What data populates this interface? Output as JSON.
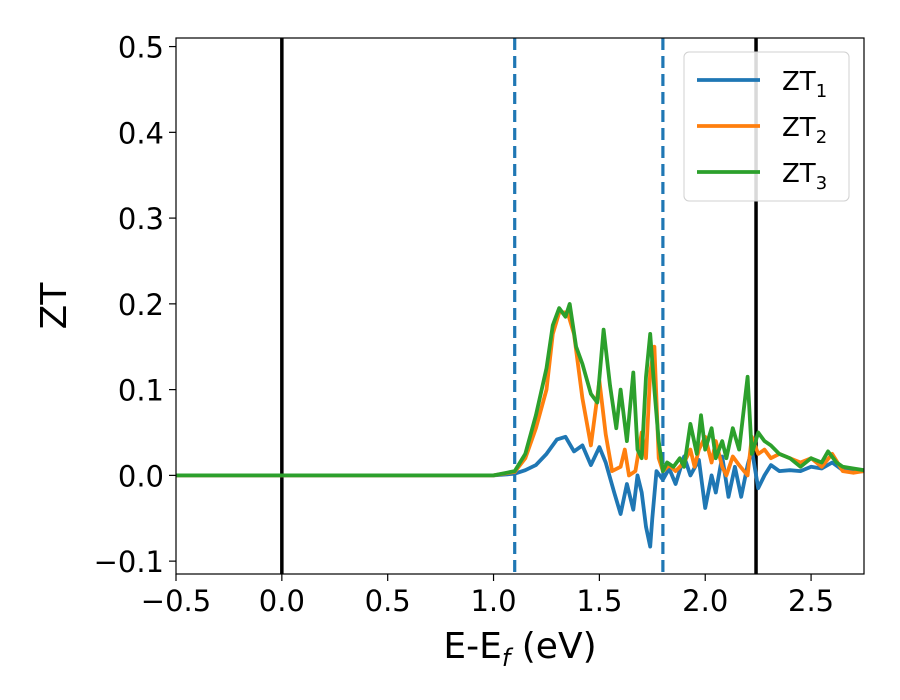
{
  "chart_data": {
    "type": "line",
    "xlabel": {
      "main": "E-E",
      "sub": "f",
      "unit": " (eV)"
    },
    "ylabel": "ZT",
    "xlim": [
      -0.5,
      2.75
    ],
    "ylim": [
      -0.115,
      0.51
    ],
    "xticks": [
      -0.5,
      0.0,
      0.5,
      1.0,
      1.5,
      2.0,
      2.5
    ],
    "xtick_labels": [
      "−0.5",
      "0.0",
      "0.5",
      "1.0",
      "1.5",
      "2.0",
      "2.5"
    ],
    "yticks": [
      -0.1,
      0.0,
      0.1,
      0.2,
      0.3,
      0.4,
      0.5
    ],
    "ytick_labels": [
      "−0.1",
      "0.0",
      "0.1",
      "0.2",
      "0.3",
      "0.4",
      "0.5"
    ],
    "grid": false,
    "legend_position": "top-right",
    "vertical_lines": [
      {
        "x": 0.0,
        "style": "solid",
        "color": "#000000"
      },
      {
        "x": 1.1,
        "style": "dashed",
        "color": "#1f77b4"
      },
      {
        "x": 1.8,
        "style": "dashed",
        "color": "#1f77b4"
      },
      {
        "x": 2.24,
        "style": "solid",
        "color": "#000000"
      }
    ],
    "series": [
      {
        "name": "ZT",
        "name_sub": "1",
        "color": "#1f77b4",
        "x": [
          -0.5,
          1.0,
          1.1,
          1.15,
          1.2,
          1.25,
          1.3,
          1.34,
          1.38,
          1.42,
          1.46,
          1.5,
          1.53,
          1.57,
          1.6,
          1.63,
          1.66,
          1.68,
          1.7,
          1.72,
          1.74,
          1.75,
          1.77,
          1.8,
          1.83,
          1.86,
          1.9,
          1.93,
          1.97,
          2.0,
          2.03,
          2.05,
          2.08,
          2.11,
          2.14,
          2.17,
          2.2,
          2.22,
          2.25,
          2.28,
          2.31,
          2.35,
          2.4,
          2.45,
          2.5,
          2.55,
          2.6,
          2.65,
          2.7,
          2.75
        ],
        "y": [
          0.0,
          0.0,
          0.002,
          0.006,
          0.012,
          0.025,
          0.042,
          0.045,
          0.028,
          0.035,
          0.012,
          0.033,
          0.015,
          -0.02,
          -0.045,
          -0.01,
          -0.04,
          0.0,
          -0.02,
          -0.06,
          -0.083,
          -0.05,
          0.005,
          -0.005,
          0.008,
          -0.01,
          0.022,
          0.0,
          0.018,
          -0.038,
          0.0,
          -0.02,
          0.022,
          -0.025,
          0.01,
          -0.025,
          0.012,
          0.03,
          -0.015,
          0.0,
          0.012,
          0.005,
          0.006,
          0.005,
          0.01,
          0.008,
          0.015,
          0.006,
          0.004,
          0.005
        ]
      },
      {
        "name": "ZT",
        "name_sub": "2",
        "color": "#ff7f0e",
        "x": [
          -0.5,
          1.0,
          1.1,
          1.15,
          1.2,
          1.25,
          1.28,
          1.31,
          1.35,
          1.38,
          1.42,
          1.46,
          1.5,
          1.53,
          1.56,
          1.6,
          1.62,
          1.64,
          1.67,
          1.7,
          1.72,
          1.74,
          1.76,
          1.78,
          1.8,
          1.83,
          1.86,
          1.9,
          1.93,
          1.95,
          1.97,
          2.0,
          2.03,
          2.05,
          2.08,
          2.1,
          2.13,
          2.16,
          2.2,
          2.22,
          2.25,
          2.28,
          2.31,
          2.35,
          2.4,
          2.45,
          2.5,
          2.55,
          2.6,
          2.65,
          2.7,
          2.75
        ],
        "y": [
          0.0,
          0.0,
          0.004,
          0.02,
          0.055,
          0.1,
          0.165,
          0.19,
          0.19,
          0.165,
          0.09,
          0.035,
          0.11,
          0.048,
          0.005,
          0.01,
          0.03,
          0.0,
          0.005,
          0.05,
          0.02,
          0.12,
          0.15,
          0.02,
          0.005,
          0.012,
          0.005,
          0.015,
          0.03,
          0.01,
          0.03,
          0.045,
          0.015,
          0.04,
          0.01,
          0.0,
          0.022,
          0.012,
          0.0,
          0.045,
          0.025,
          0.03,
          0.02,
          0.025,
          0.02,
          0.015,
          0.02,
          0.01,
          0.025,
          0.005,
          0.003,
          0.005
        ]
      },
      {
        "name": "ZT",
        "name_sub": "3",
        "color": "#2ca02c",
        "x": [
          -0.5,
          1.0,
          1.1,
          1.15,
          1.2,
          1.25,
          1.28,
          1.31,
          1.34,
          1.36,
          1.39,
          1.42,
          1.46,
          1.49,
          1.52,
          1.55,
          1.58,
          1.6,
          1.63,
          1.66,
          1.68,
          1.7,
          1.72,
          1.74,
          1.76,
          1.78,
          1.8,
          1.82,
          1.85,
          1.88,
          1.9,
          1.93,
          1.96,
          1.98,
          2.0,
          2.03,
          2.05,
          2.08,
          2.1,
          2.13,
          2.16,
          2.2,
          2.22,
          2.25,
          2.28,
          2.31,
          2.35,
          2.4,
          2.45,
          2.5,
          2.55,
          2.58,
          2.62,
          2.65,
          2.7,
          2.75
        ],
        "y": [
          0.0,
          0.0,
          0.005,
          0.025,
          0.07,
          0.125,
          0.175,
          0.195,
          0.185,
          0.2,
          0.15,
          0.13,
          0.095,
          0.085,
          0.17,
          0.105,
          0.055,
          0.1,
          0.04,
          0.12,
          0.03,
          0.02,
          0.115,
          0.165,
          0.1,
          0.04,
          0.005,
          0.015,
          0.01,
          0.02,
          0.01,
          0.06,
          0.025,
          0.07,
          0.03,
          0.055,
          0.02,
          0.04,
          0.02,
          0.055,
          0.03,
          0.115,
          0.025,
          0.05,
          0.04,
          0.035,
          0.025,
          0.02,
          0.01,
          0.02,
          0.015,
          0.028,
          0.015,
          0.01,
          0.008,
          0.006
        ]
      }
    ]
  }
}
